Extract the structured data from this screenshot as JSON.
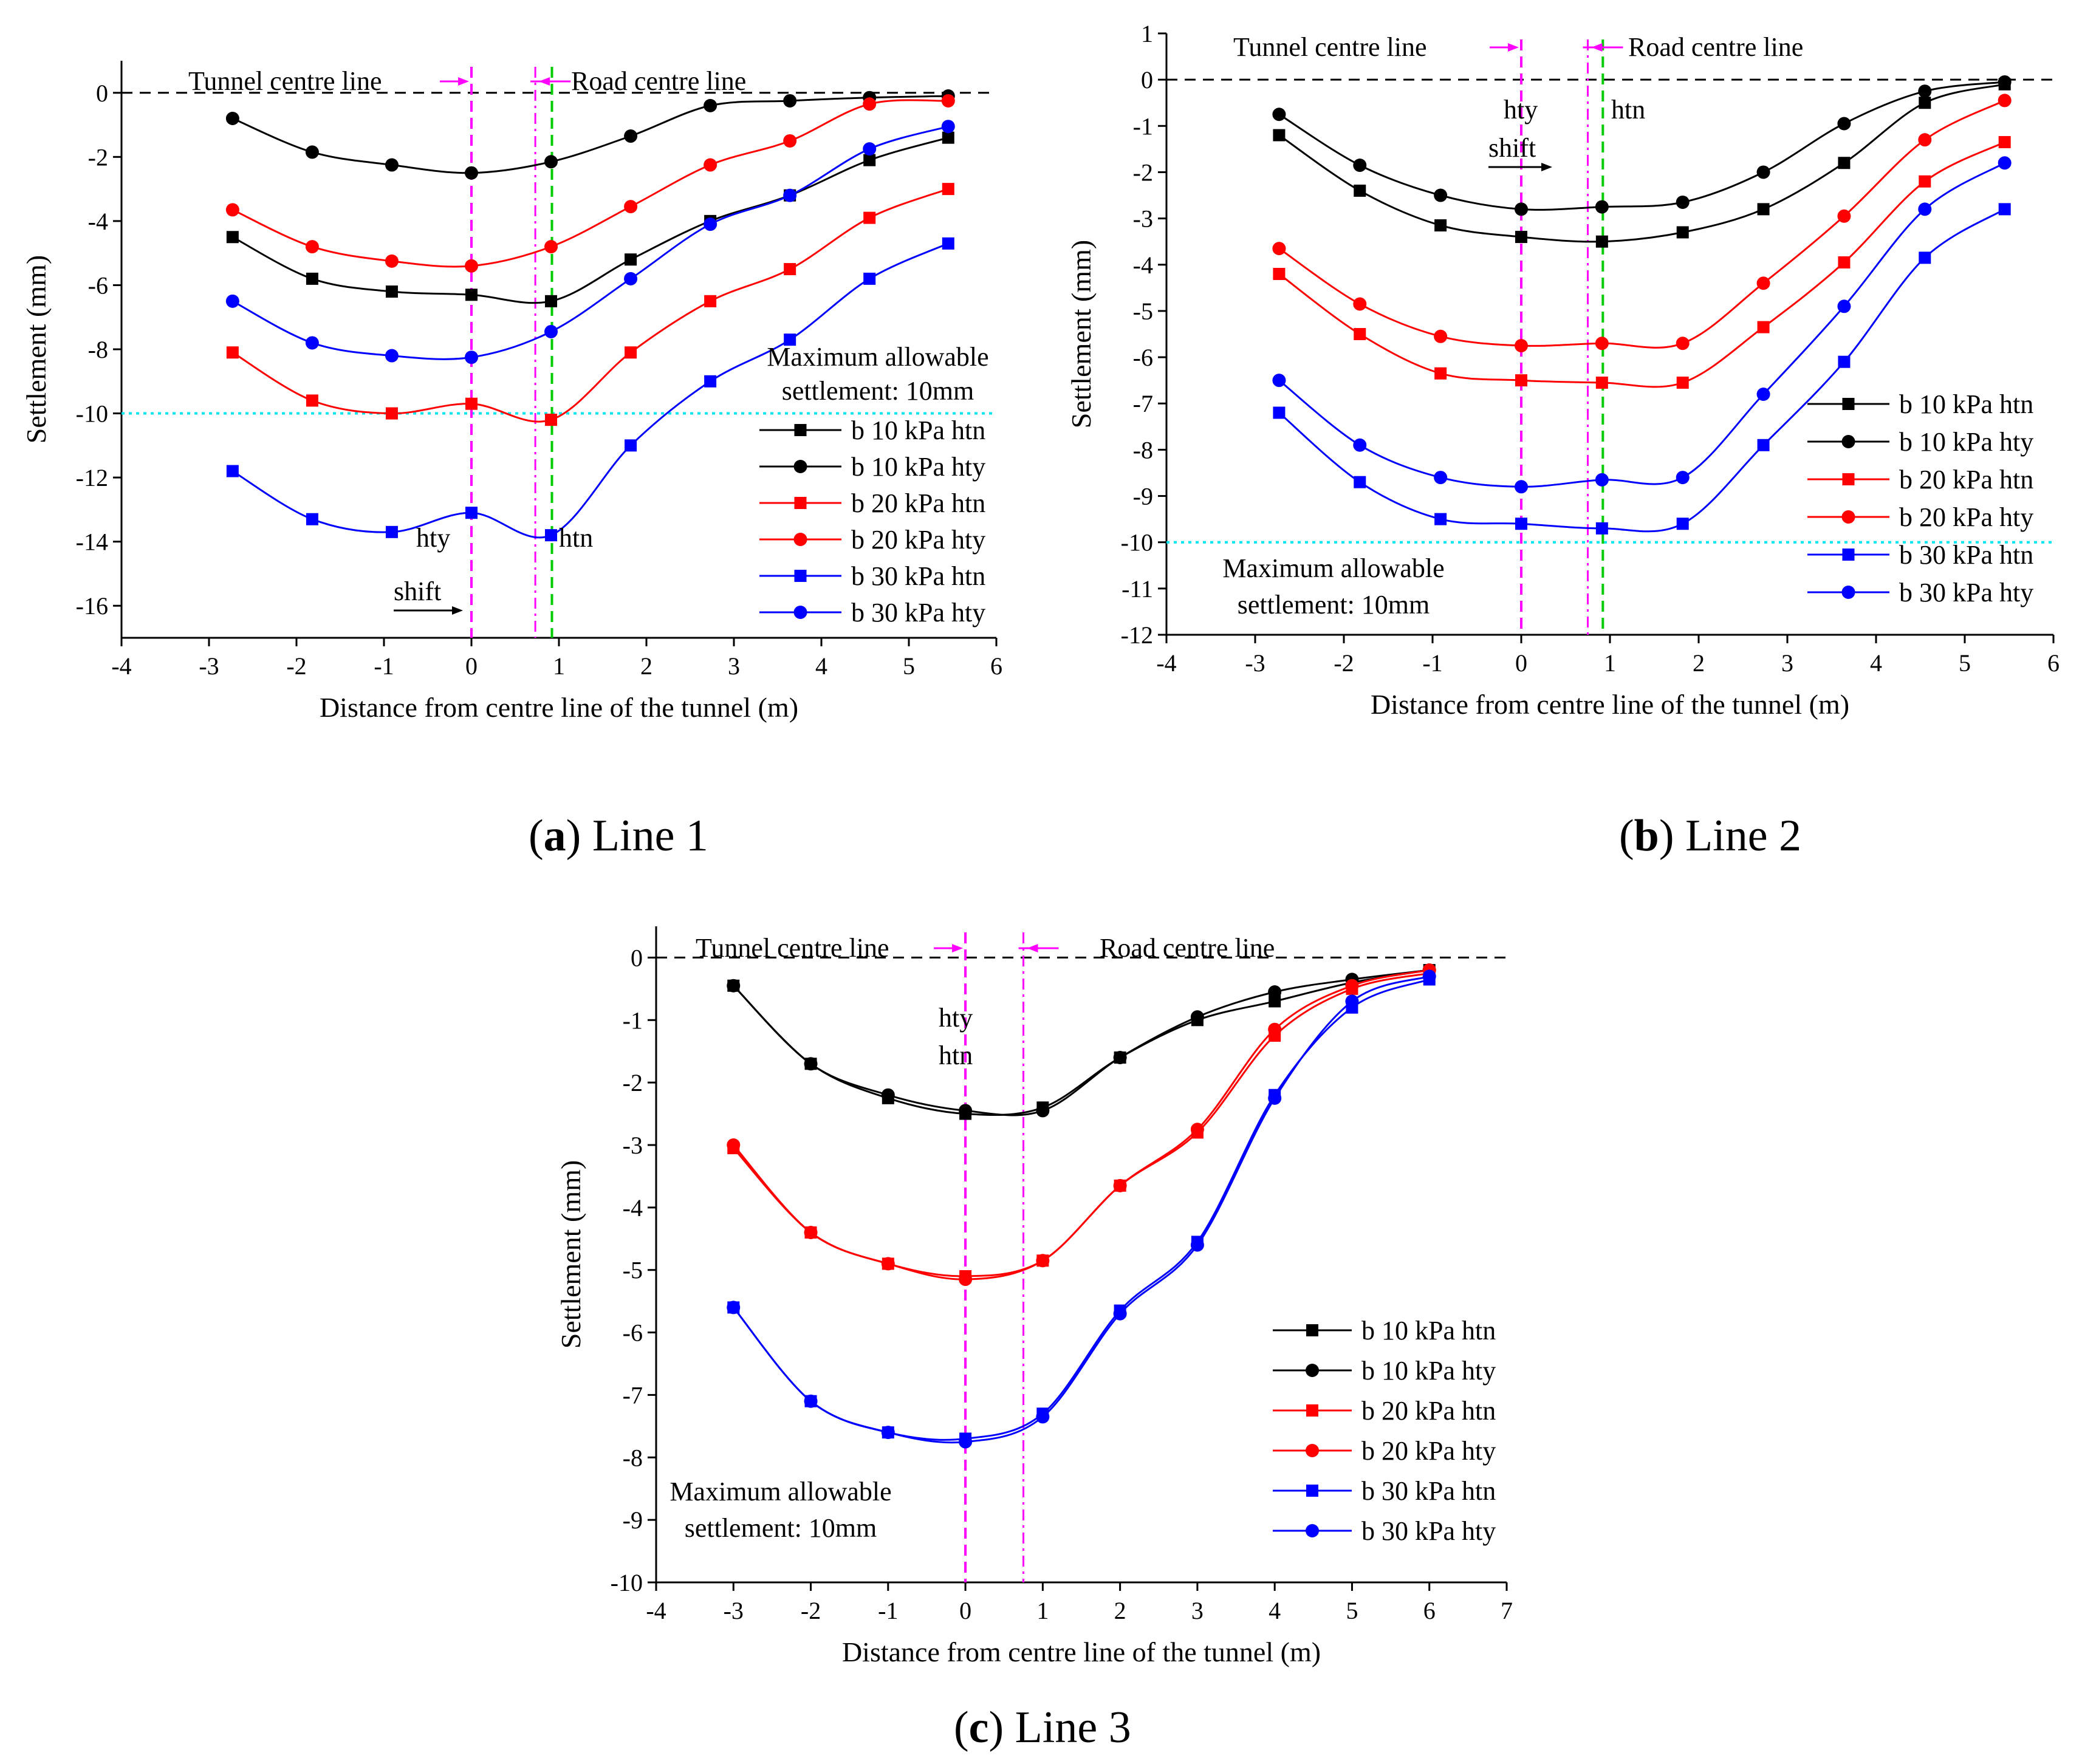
{
  "colors": {
    "black_series": "#000000",
    "red_series": "#ff0000",
    "blue_series": "#0000ff",
    "tunnel_line": "#ff00ff",
    "htn_line": "#00cc00",
    "limit_line": "#00e5ee",
    "zero_line": "#000000"
  },
  "chart_data": [
    {
      "id": "a",
      "type": "line",
      "caption_letter": "a",
      "caption_text": "Line 1",
      "xlabel": "Distance from centre line of the tunnel (m)",
      "ylabel": "Settlement  (mm)",
      "xlim": [
        -4,
        6
      ],
      "ylim": [
        -17,
        1
      ],
      "xticks": [
        -4,
        -3,
        -2,
        -1,
        0,
        1,
        2,
        3,
        4,
        5,
        6
      ],
      "yticks": [
        0,
        -2,
        -4,
        -6,
        -8,
        -10,
        -12,
        -14,
        -16
      ],
      "annotations": {
        "tunnel_centre": "Tunnel centre line",
        "road_centre": "Road centre line",
        "max_allowable_1": "Maximum allowable",
        "max_allowable_2": "settlement: 10mm",
        "hty": "hty",
        "htn": "htn",
        "shift": "shift"
      },
      "tunnel_centre_x": 0,
      "road_centre_x": 0.73,
      "htn_line_x": 0.92,
      "limit_y": -10,
      "x": [
        -2.73,
        -1.82,
        -0.91,
        0,
        0.91,
        1.82,
        2.73,
        3.64,
        4.55,
        5.45
      ],
      "series": [
        {
          "name": "b 10 kPa htn",
          "marker": "square",
          "color_key": "black_series",
          "values": [
            -4.5,
            -5.8,
            -6.2,
            -6.3,
            -6.5,
            -5.2,
            -4.0,
            -3.2,
            -2.1,
            -1.4
          ]
        },
        {
          "name": "b 10 kPa hty",
          "marker": "circle",
          "color_key": "black_series",
          "values": [
            -0.8,
            -1.85,
            -2.25,
            -2.5,
            -2.15,
            -1.35,
            -0.4,
            -0.25,
            -0.15,
            -0.1
          ]
        },
        {
          "name": "b 20 kPa htn",
          "marker": "square",
          "color_key": "red_series",
          "values": [
            -8.1,
            -9.6,
            -10.0,
            -9.7,
            -10.2,
            -8.1,
            -6.5,
            -5.5,
            -3.9,
            -3.0
          ]
        },
        {
          "name": "b 20 kPa hty",
          "marker": "circle",
          "color_key": "red_series",
          "values": [
            -3.65,
            -4.8,
            -5.25,
            -5.4,
            -4.8,
            -3.55,
            -2.25,
            -1.5,
            -0.35,
            -0.25
          ]
        },
        {
          "name": "b 30 kPa htn",
          "marker": "square",
          "color_key": "blue_series",
          "values": [
            -11.8,
            -13.3,
            -13.7,
            -13.1,
            -13.8,
            -11.0,
            -9.0,
            -7.7,
            -5.8,
            -4.7
          ]
        },
        {
          "name": "b 30 kPa hty",
          "marker": "circle",
          "color_key": "blue_series",
          "values": [
            -6.5,
            -7.8,
            -8.2,
            -8.25,
            -7.45,
            -5.8,
            -4.1,
            -3.2,
            -1.75,
            -1.05
          ]
        }
      ]
    },
    {
      "id": "b",
      "type": "line",
      "caption_letter": "b",
      "caption_text": "Line 2",
      "xlabel": "Distance from centre line of the tunnel (m)",
      "ylabel": "Settlement  (mm)",
      "xlim": [
        -4,
        6
      ],
      "ylim": [
        -12,
        1
      ],
      "xticks": [
        -4,
        -3,
        -2,
        -1,
        0,
        1,
        2,
        3,
        4,
        5,
        6
      ],
      "yticks": [
        1,
        0,
        -1,
        -2,
        -3,
        -4,
        -5,
        -6,
        -7,
        -8,
        -9,
        -10,
        -11,
        -12
      ],
      "annotations": {
        "tunnel_centre": "Tunnel centre line",
        "road_centre": "Road centre line",
        "max_allowable_1": "Maximum allowable",
        "max_allowable_2": "settlement: 10mm",
        "hty": "hty",
        "htn": "htn",
        "shift": "shift"
      },
      "tunnel_centre_x": 0,
      "road_centre_x": 0.75,
      "htn_line_x": 0.92,
      "limit_y": -10,
      "x": [
        -2.73,
        -1.82,
        -0.91,
        0,
        0.91,
        1.82,
        2.73,
        3.64,
        4.55,
        5.45
      ],
      "series": [
        {
          "name": "b 10 kPa htn",
          "marker": "square",
          "color_key": "black_series",
          "values": [
            -1.2,
            -2.4,
            -3.15,
            -3.4,
            -3.5,
            -3.3,
            -2.8,
            -1.8,
            -0.5,
            -0.1
          ]
        },
        {
          "name": "b 10 kPa hty",
          "marker": "circle",
          "color_key": "black_series",
          "values": [
            -0.75,
            -1.85,
            -2.5,
            -2.8,
            -2.75,
            -2.65,
            -2.0,
            -0.95,
            -0.25,
            -0.05
          ]
        },
        {
          "name": "b 20 kPa htn",
          "marker": "square",
          "color_key": "red_series",
          "values": [
            -4.2,
            -5.5,
            -6.35,
            -6.5,
            -6.55,
            -6.55,
            -5.35,
            -3.95,
            -2.2,
            -1.35
          ]
        },
        {
          "name": "b 20 kPa hty",
          "marker": "circle",
          "color_key": "red_series",
          "values": [
            -3.65,
            -4.85,
            -5.55,
            -5.75,
            -5.7,
            -5.7,
            -4.4,
            -2.95,
            -1.3,
            -0.45
          ]
        },
        {
          "name": "b 30 kPa htn",
          "marker": "square",
          "color_key": "blue_series",
          "values": [
            -7.2,
            -8.7,
            -9.5,
            -9.6,
            -9.7,
            -9.6,
            -7.9,
            -6.1,
            -3.85,
            -2.8
          ]
        },
        {
          "name": "b 30 kPa hty",
          "marker": "circle",
          "color_key": "blue_series",
          "values": [
            -6.5,
            -7.9,
            -8.6,
            -8.8,
            -8.65,
            -8.6,
            -6.8,
            -4.9,
            -2.8,
            -1.8
          ]
        }
      ]
    },
    {
      "id": "c",
      "type": "line",
      "caption_letter": "c",
      "caption_text": "Line 3",
      "xlabel": "Distance from centre line of the tunnel (m)",
      "ylabel": "Settlement  (mm)",
      "xlim": [
        -4,
        7
      ],
      "ylim": [
        -10,
        0.5
      ],
      "xticks": [
        -4,
        -3,
        -2,
        -1,
        0,
        1,
        2,
        3,
        4,
        5,
        6,
        7
      ],
      "yticks": [
        0,
        -1,
        -2,
        -3,
        -4,
        -5,
        -6,
        -7,
        -8,
        -9,
        -10
      ],
      "annotations": {
        "tunnel_centre": "Tunnel centre line",
        "road_centre": "Road centre line",
        "max_allowable_1": "Maximum allowable",
        "max_allowable_2": "settlement: 10mm",
        "hty": "hty",
        "htn": "htn"
      },
      "tunnel_centre_x": 0,
      "road_centre_x": 0.75,
      "x": [
        -3,
        -2,
        -1,
        0,
        1,
        2,
        3,
        4,
        5,
        6
      ],
      "series": [
        {
          "name": "b 10 kPa htn",
          "marker": "square",
          "color_key": "black_series",
          "values": [
            -0.45,
            -1.7,
            -2.25,
            -2.5,
            -2.4,
            -1.6,
            -1.0,
            -0.7,
            -0.4,
            -0.2
          ]
        },
        {
          "name": "b 10 kPa hty",
          "marker": "circle",
          "color_key": "black_series",
          "values": [
            -0.45,
            -1.7,
            -2.2,
            -2.45,
            -2.45,
            -1.6,
            -0.95,
            -0.55,
            -0.35,
            -0.2
          ]
        },
        {
          "name": "b 20 kPa htn",
          "marker": "square",
          "color_key": "red_series",
          "values": [
            -3.05,
            -4.4,
            -4.9,
            -5.1,
            -4.85,
            -3.65,
            -2.8,
            -1.25,
            -0.5,
            -0.25
          ]
        },
        {
          "name": "b 20 kPa hty",
          "marker": "circle",
          "color_key": "red_series",
          "values": [
            -3.0,
            -4.4,
            -4.9,
            -5.15,
            -4.85,
            -3.65,
            -2.75,
            -1.15,
            -0.45,
            -0.2
          ]
        },
        {
          "name": "b 30 kPa htn",
          "marker": "square",
          "color_key": "blue_series",
          "values": [
            -5.6,
            -7.1,
            -7.6,
            -7.7,
            -7.3,
            -5.65,
            -4.55,
            -2.2,
            -0.8,
            -0.35
          ]
        },
        {
          "name": "b 30 kPa hty",
          "marker": "circle",
          "color_key": "blue_series",
          "values": [
            -5.6,
            -7.1,
            -7.6,
            -7.75,
            -7.35,
            -5.7,
            -4.6,
            -2.25,
            -0.7,
            -0.3
          ]
        }
      ]
    }
  ]
}
